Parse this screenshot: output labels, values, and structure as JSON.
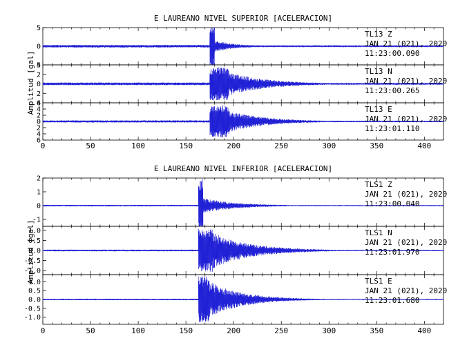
{
  "colors": {
    "trace": "#1f1fd6",
    "axis": "#000000",
    "background": "#ffffff"
  },
  "chart_data": [
    {
      "type": "line",
      "title": "E LAUREANO NIVEL SUPERIOR [ACELERACION]",
      "ylabel": "Amplitud [gal]",
      "xlim": [
        0,
        420
      ],
      "x_ticks": [
        0,
        50,
        100,
        150,
        200,
        250,
        300,
        350,
        400
      ],
      "x_tick_labels": [
        "0",
        "50",
        "100",
        "150",
        "200",
        "250",
        "300",
        "350",
        "400"
      ],
      "series": [
        {
          "station": "TL13",
          "component": "Z",
          "date": "JAN 21 (021), 2020",
          "time": "11:23:00.090",
          "ylim": [
            -5,
            5
          ],
          "y_ticks": [
            -5,
            0,
            5
          ],
          "y_tick_labels": [
            "5",
            "0",
            "5"
          ],
          "onset": 175,
          "peak": 5.5,
          "pre_noise": 0.25,
          "coda_decay": 22,
          "coda_start": 180,
          "coda_amp": 1.6
        },
        {
          "station": "TL13",
          "component": "N",
          "date": "JAN 21 (021), 2020",
          "time": "11:23:00.265",
          "ylim": [
            -4,
            4
          ],
          "y_ticks": [
            -4,
            -2,
            0,
            2,
            4
          ],
          "y_tick_labels": [
            "4",
            "2",
            "0",
            "2",
            "4"
          ],
          "onset": 175,
          "peak": 3.5,
          "pre_noise": 0.2,
          "coda_decay": 40,
          "coda_start": 195,
          "coda_amp": 2.5
        },
        {
          "station": "TL13",
          "component": "E",
          "date": "JAN 21 (021), 2020",
          "time": "11:23:01.110",
          "ylim": [
            -6,
            6
          ],
          "y_ticks": [
            -6,
            -4,
            -2,
            0,
            2,
            4,
            6
          ],
          "y_tick_labels": [
            "6",
            "4",
            "2",
            "0",
            "2",
            "4",
            "6"
          ],
          "onset": 175,
          "peak": 5.2,
          "pre_noise": 0.25,
          "coda_decay": 38,
          "coda_start": 195,
          "coda_amp": 3.5
        }
      ]
    },
    {
      "type": "line",
      "title": "E LAUREANO NIVEL INFERIOR [ACELERACION]",
      "ylabel": "Amplitud [gal]",
      "xlim": [
        0,
        420
      ],
      "x_ticks": [
        0,
        50,
        100,
        150,
        200,
        250,
        300,
        350,
        400
      ],
      "x_tick_labels": [
        "0",
        "50",
        "100",
        "150",
        "200",
        "250",
        "300",
        "350",
        "400"
      ],
      "series": [
        {
          "station": "TLS1",
          "component": "Z",
          "date": "JAN 21 (021), 2020",
          "time": "11:23:00.040",
          "ylim": [
            -1.5,
            2
          ],
          "y_ticks": [
            -1,
            0,
            1,
            2
          ],
          "y_tick_labels": [
            "-1",
            "0",
            "1",
            "2"
          ],
          "onset": 163,
          "peak": 2.0,
          "pre_noise": 0.04,
          "coda_decay": 35,
          "coda_start": 168,
          "coda_amp": 0.55
        },
        {
          "station": "TLS1",
          "component": "N",
          "date": "JAN 21 (021), 2020",
          "time": "11:23:01.970",
          "ylim": [
            -1.2,
            1.2
          ],
          "y_ticks": [
            -1.0,
            -0.5,
            0.0,
            0.5,
            1.0
          ],
          "y_tick_labels": [
            "-1.0",
            "-0.5",
            "0.0",
            "0.5",
            "1.0"
          ],
          "onset": 163,
          "peak": 1.1,
          "pre_noise": 0.03,
          "coda_decay": 40,
          "coda_start": 178,
          "coda_amp": 0.9
        },
        {
          "station": "TLS1",
          "component": "E",
          "date": "JAN 21 (021), 2020",
          "time": "11:23:01.680",
          "ylim": [
            -1.4,
            1.4
          ],
          "y_ticks": [
            -1.0,
            -0.5,
            0.0,
            0.5,
            1.0
          ],
          "y_tick_labels": [
            "-1.0",
            "-0.5",
            "0.0",
            "0.5",
            "1.0"
          ],
          "onset": 163,
          "peak": 1.3,
          "pre_noise": 0.03,
          "coda_decay": 35,
          "coda_start": 175,
          "coda_amp": 1.0
        }
      ]
    }
  ]
}
